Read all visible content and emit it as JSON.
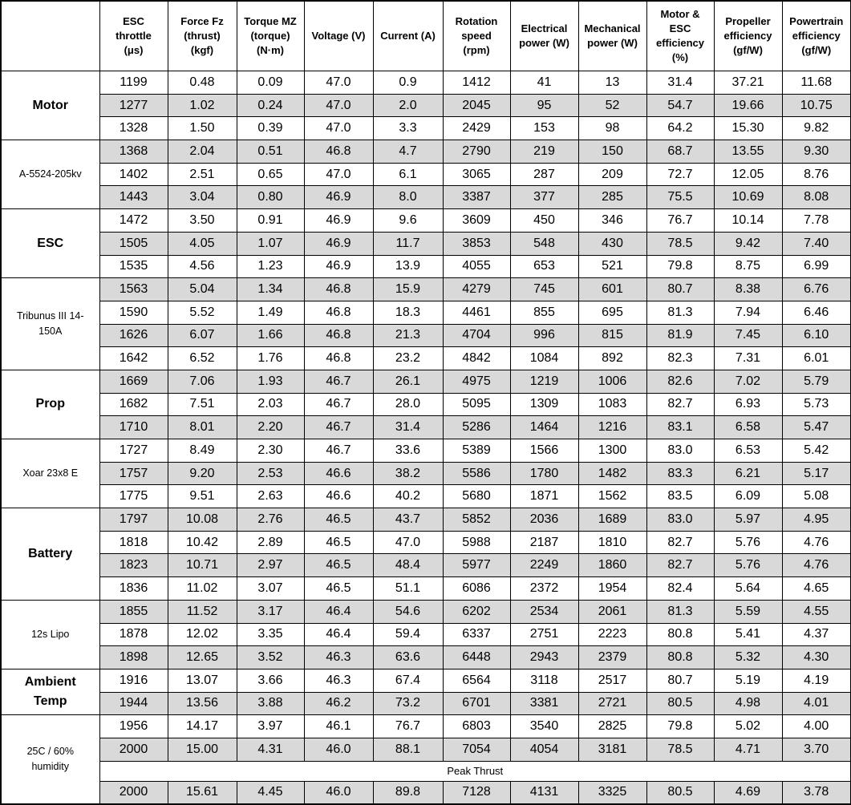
{
  "stripe_color": "#d9d9d9",
  "table": {
    "columns": [
      "ESC\nthrottle\n(μs)",
      "Force Fz\n(thrust)\n(kgf)",
      "Torque MZ\n(torque)\n(N·m)",
      "Voltage (V)",
      "Current (A)",
      "Rotation\nspeed\n(rpm)",
      "Electrical\npower (W)",
      "Mechanical\npower (W)",
      "Motor &\nESC\nefficiency\n(%)",
      "Propeller\nefficiency\n(gf/W)",
      "Powertrain\nefficiency\n(gf/W)"
    ],
    "sections": [
      {
        "label": "Motor",
        "bold": true,
        "rows": [
          [
            "1199",
            "0.48",
            "0.09",
            "47.0",
            "0.9",
            "1412",
            "41",
            "13",
            "31.4",
            "37.21",
            "11.68"
          ],
          [
            "1277",
            "1.02",
            "0.24",
            "47.0",
            "2.0",
            "2045",
            "95",
            "52",
            "54.7",
            "19.66",
            "10.75"
          ],
          [
            "1328",
            "1.50",
            "0.39",
            "47.0",
            "3.3",
            "2429",
            "153",
            "98",
            "64.2",
            "15.30",
            "9.82"
          ]
        ]
      },
      {
        "label": "A-5524-205kv",
        "bold": false,
        "rows": [
          [
            "1368",
            "2.04",
            "0.51",
            "46.8",
            "4.7",
            "2790",
            "219",
            "150",
            "68.7",
            "13.55",
            "9.30"
          ],
          [
            "1402",
            "2.51",
            "0.65",
            "47.0",
            "6.1",
            "3065",
            "287",
            "209",
            "72.7",
            "12.05",
            "8.76"
          ],
          [
            "1443",
            "3.04",
            "0.80",
            "46.9",
            "8.0",
            "3387",
            "377",
            "285",
            "75.5",
            "10.69",
            "8.08"
          ]
        ]
      },
      {
        "label": "ESC",
        "bold": true,
        "rows": [
          [
            "1472",
            "3.50",
            "0.91",
            "46.9",
            "9.6",
            "3609",
            "450",
            "346",
            "76.7",
            "10.14",
            "7.78"
          ],
          [
            "1505",
            "4.05",
            "1.07",
            "46.9",
            "11.7",
            "3853",
            "548",
            "430",
            "78.5",
            "9.42",
            "7.40"
          ],
          [
            "1535",
            "4.56",
            "1.23",
            "46.9",
            "13.9",
            "4055",
            "653",
            "521",
            "79.8",
            "8.75",
            "6.99"
          ]
        ]
      },
      {
        "label": "Tribunus III 14-\n150A",
        "bold": false,
        "rows": [
          [
            "1563",
            "5.04",
            "1.34",
            "46.8",
            "15.9",
            "4279",
            "745",
            "601",
            "80.7",
            "8.38",
            "6.76"
          ],
          [
            "1590",
            "5.52",
            "1.49",
            "46.8",
            "18.3",
            "4461",
            "855",
            "695",
            "81.3",
            "7.94",
            "6.46"
          ],
          [
            "1626",
            "6.07",
            "1.66",
            "46.8",
            "21.3",
            "4704",
            "996",
            "815",
            "81.9",
            "7.45",
            "6.10"
          ],
          [
            "1642",
            "6.52",
            "1.76",
            "46.8",
            "23.2",
            "4842",
            "1084",
            "892",
            "82.3",
            "7.31",
            "6.01"
          ]
        ]
      },
      {
        "label": "Prop",
        "bold": true,
        "rows": [
          [
            "1669",
            "7.06",
            "1.93",
            "46.7",
            "26.1",
            "4975",
            "1219",
            "1006",
            "82.6",
            "7.02",
            "5.79"
          ],
          [
            "1682",
            "7.51",
            "2.03",
            "46.7",
            "28.0",
            "5095",
            "1309",
            "1083",
            "82.7",
            "6.93",
            "5.73"
          ],
          [
            "1710",
            "8.01",
            "2.20",
            "46.7",
            "31.4",
            "5286",
            "1464",
            "1216",
            "83.1",
            "6.58",
            "5.47"
          ]
        ]
      },
      {
        "label": "Xoar 23x8 E",
        "bold": false,
        "rows": [
          [
            "1727",
            "8.49",
            "2.30",
            "46.7",
            "33.6",
            "5389",
            "1566",
            "1300",
            "83.0",
            "6.53",
            "5.42"
          ],
          [
            "1757",
            "9.20",
            "2.53",
            "46.6",
            "38.2",
            "5586",
            "1780",
            "1482",
            "83.3",
            "6.21",
            "5.17"
          ],
          [
            "1775",
            "9.51",
            "2.63",
            "46.6",
            "40.2",
            "5680",
            "1871",
            "1562",
            "83.5",
            "6.09",
            "5.08"
          ]
        ]
      },
      {
        "label": "Battery",
        "bold": true,
        "rows": [
          [
            "1797",
            "10.08",
            "2.76",
            "46.5",
            "43.7",
            "5852",
            "2036",
            "1689",
            "83.0",
            "5.97",
            "4.95"
          ],
          [
            "1818",
            "10.42",
            "2.89",
            "46.5",
            "47.0",
            "5988",
            "2187",
            "1810",
            "82.7",
            "5.76",
            "4.76"
          ],
          [
            "1823",
            "10.71",
            "2.97",
            "46.5",
            "48.4",
            "5977",
            "2249",
            "1860",
            "82.7",
            "5.76",
            "4.76"
          ],
          [
            "1836",
            "11.02",
            "3.07",
            "46.5",
            "51.1",
            "6086",
            "2372",
            "1954",
            "82.4",
            "5.64",
            "4.65"
          ]
        ]
      },
      {
        "label": "12s Lipo",
        "bold": false,
        "rows": [
          [
            "1855",
            "11.52",
            "3.17",
            "46.4",
            "54.6",
            "6202",
            "2534",
            "2061",
            "81.3",
            "5.59",
            "4.55"
          ],
          [
            "1878",
            "12.02",
            "3.35",
            "46.4",
            "59.4",
            "6337",
            "2751",
            "2223",
            "80.8",
            "5.41",
            "4.37"
          ],
          [
            "1898",
            "12.65",
            "3.52",
            "46.3",
            "63.6",
            "6448",
            "2943",
            "2379",
            "80.8",
            "5.32",
            "4.30"
          ]
        ]
      },
      {
        "label": "Ambient\nTemp",
        "bold": true,
        "rows": [
          [
            "1916",
            "13.07",
            "3.66",
            "46.3",
            "67.4",
            "6564",
            "3118",
            "2517",
            "80.7",
            "5.19",
            "4.19"
          ],
          [
            "1944",
            "13.56",
            "3.88",
            "46.2",
            "73.2",
            "6701",
            "3381",
            "2721",
            "80.5",
            "4.98",
            "4.01"
          ]
        ]
      },
      {
        "label": "25C / 60%\nhumidity",
        "bold": false,
        "rows": [
          [
            "1956",
            "14.17",
            "3.97",
            "46.1",
            "76.7",
            "6803",
            "3540",
            "2825",
            "79.8",
            "5.02",
            "4.00"
          ],
          [
            "2000",
            "15.00",
            "4.31",
            "46.0",
            "88.1",
            "7054",
            "4054",
            "3181",
            "78.5",
            "4.71",
            "3.70"
          ]
        ],
        "peak": {
          "label": "Peak Thrust",
          "row": [
            "2000",
            "15.61",
            "4.45",
            "46.0",
            "89.8",
            "7128",
            "4131",
            "3325",
            "80.5",
            "4.69",
            "3.78"
          ]
        }
      }
    ]
  }
}
